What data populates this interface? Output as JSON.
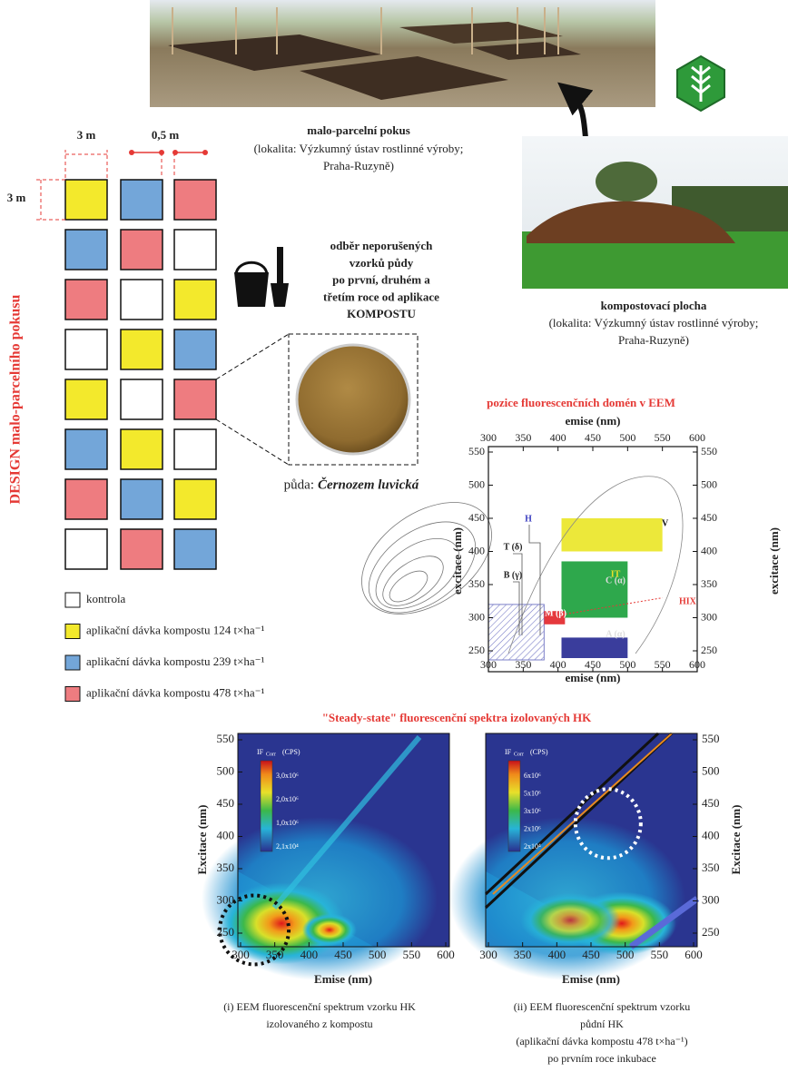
{
  "field_photo": {
    "caption": "malo-parcelní pokus",
    "location": [
      "(lokalita: Výzkumný ústav rostlinné výroby;",
      "Praha-Ruzyně)"
    ]
  },
  "compost_photo": {
    "caption": "kompostovací plocha",
    "location": [
      "(lokalita: Výzkumný ústav rostlinné výroby;",
      "Praha-Ruzyně)"
    ]
  },
  "design": {
    "title": "DESIGN malo-parcelního pokusu",
    "plot_width": "3 m",
    "gap": "0,5 m",
    "plot_height": "3 m",
    "layout": [
      [
        1,
        2,
        3
      ],
      [
        2,
        3,
        0
      ],
      [
        3,
        0,
        1
      ],
      [
        0,
        1,
        2
      ],
      [
        1,
        0,
        3
      ],
      [
        2,
        1,
        0
      ],
      [
        3,
        2,
        1
      ],
      [
        0,
        3,
        2
      ]
    ]
  },
  "treatments": [
    {
      "label": "kontrola",
      "color": "#ffffff"
    },
    {
      "label": "aplikační dávka kompostu 124 t×ha⁻¹",
      "color": "#f3e92c"
    },
    {
      "label": "aplikační dávka kompostu 239 t×ha⁻¹",
      "color": "#73a6d9"
    },
    {
      "label": "aplikační dávka kompostu 478 t×ha⁻¹",
      "color": "#ee7c80"
    }
  ],
  "sampling": {
    "lines": [
      "odběr neporušených",
      "vzorků půdy",
      "po první, druhém a",
      "třetím roce od aplikace",
      "KOMPOSTU"
    ]
  },
  "soil": {
    "prefix": "půda:",
    "name": "Černozem luvická"
  },
  "domain_map": {
    "title": "pozice fluorescenčních domén v EEM",
    "x_label": "emise (nm)",
    "y_label": "excitace (nm)",
    "xticks": [
      300,
      350,
      400,
      450,
      500,
      550,
      600
    ],
    "yticks": [
      250,
      300,
      350,
      400,
      450,
      500,
      550
    ],
    "regions": [
      "V",
      "H",
      "T (δ)",
      "B (γ)",
      "M (β)",
      "C (α)",
      "A (α)",
      "HIX",
      "IT"
    ]
  },
  "spectra": {
    "title": "\"Steady-state\" fluorescenční spektra izolovaných HK",
    "x_label": "Emise (nm)",
    "y_label": "Excitace (nm)",
    "xticks": [
      300,
      350,
      400,
      450,
      500,
      550,
      600
    ],
    "yticks": [
      250,
      300,
      350,
      400,
      450,
      500,
      550
    ],
    "panels": [
      {
        "colorbar_title": "IF",
        "colorbar_sub": "Corr",
        "colorbar_unit": "(CPS)",
        "colorbar_labels": [
          "3,0x10⁶",
          "2,0x10⁶",
          "1,0x10⁶",
          "2,1x10⁴"
        ],
        "caption": [
          "(i) EEM fluorescenční spektrum vzorku HK",
          "izolovaného z kompostu"
        ]
      },
      {
        "colorbar_title": "IF",
        "colorbar_sub": "Corr",
        "colorbar_unit": "(CPS)",
        "colorbar_labels": [
          "6x10⁶",
          "5x10⁶",
          "3x10⁶",
          "2x10⁶",
          "2x10⁴"
        ],
        "caption": [
          "(ii) EEM fluorescenční spektrum vzorku",
          "půdní HK",
          "(aplikační dávka kompostu 478 t×ha⁻¹)",
          "po prvním roce inkubace"
        ]
      }
    ]
  }
}
